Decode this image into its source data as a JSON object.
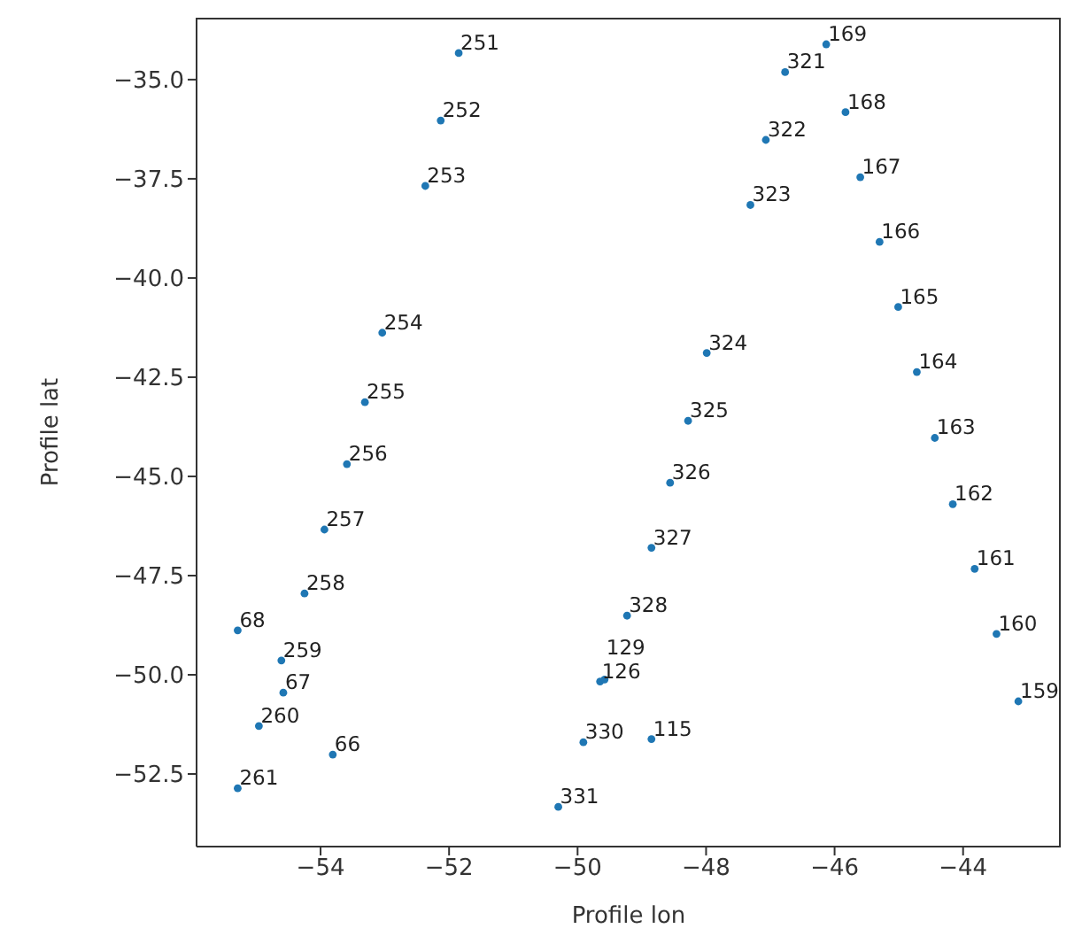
{
  "chart_data": {
    "type": "scatter",
    "xlabel": "Profile lon",
    "ylabel": "Profile lat",
    "grid": false,
    "marker": "circle",
    "xlim": [
      -55.93,
      -42.48
    ],
    "ylim": [
      -54.33,
      -33.44
    ],
    "xticks": [
      {
        "value": -54,
        "label": "−54"
      },
      {
        "value": -52,
        "label": "−52"
      },
      {
        "value": -50,
        "label": "−50"
      },
      {
        "value": -48,
        "label": "−48"
      },
      {
        "value": -46,
        "label": "−46"
      },
      {
        "value": -44,
        "label": "−44"
      }
    ],
    "yticks": [
      {
        "value": -35,
        "label": "−35.0"
      },
      {
        "value": -37.5,
        "label": "−37.5"
      },
      {
        "value": -40,
        "label": "−40.0"
      },
      {
        "value": -42.5,
        "label": "−42.5"
      },
      {
        "value": -45,
        "label": "−45.0"
      },
      {
        "value": -47.5,
        "label": "−47.5"
      },
      {
        "value": -50,
        "label": "−50.0"
      },
      {
        "value": -52.5,
        "label": "−52.5"
      }
    ],
    "series": [
      {
        "color": "#1f77b4",
        "x": [
          -51.85,
          -52.13,
          -52.37,
          -53.04,
          -53.31,
          -53.59,
          -53.94,
          -54.25,
          -55.29,
          -54.61,
          -54.58,
          -54.96,
          -53.81,
          -55.29,
          -46.13,
          -46.77,
          -45.83,
          -47.07,
          -45.6,
          -47.31,
          -45.3,
          -45.01,
          -47.99,
          -44.72,
          -48.28,
          -44.44,
          -48.56,
          -44.16,
          -48.85,
          -43.82,
          -49.23,
          -43.48,
          -49.65,
          -49.58,
          -43.14,
          -49.91,
          -48.85,
          -50.3
        ],
        "values": [
          -34.33,
          -36.03,
          -37.68,
          -41.38,
          -43.13,
          -44.69,
          -46.34,
          -47.95,
          -48.88,
          -49.64,
          -50.45,
          -51.29,
          -52.01,
          -52.86,
          -34.11,
          -34.81,
          -35.82,
          -36.52,
          -37.46,
          -38.16,
          -39.09,
          -40.73,
          -41.89,
          -42.37,
          -43.6,
          -44.03,
          -45.16,
          -45.7,
          -46.8,
          -47.33,
          -48.51,
          -48.97,
          -50.17,
          -50.12,
          -50.67,
          -51.7,
          -51.62,
          -53.33
        ]
      }
    ],
    "annotations": [
      {
        "text": "251",
        "x": -51.85,
        "y": -34.33
      },
      {
        "text": "252",
        "x": -52.13,
        "y": -36.03
      },
      {
        "text": "253",
        "x": -52.37,
        "y": -37.68
      },
      {
        "text": "254",
        "x": -53.04,
        "y": -41.38
      },
      {
        "text": "255",
        "x": -53.31,
        "y": -43.13
      },
      {
        "text": "256",
        "x": -53.59,
        "y": -44.69
      },
      {
        "text": "257",
        "x": -53.94,
        "y": -46.34
      },
      {
        "text": "258",
        "x": -54.25,
        "y": -47.95
      },
      {
        "text": "68",
        "x": -55.29,
        "y": -48.88
      },
      {
        "text": "259",
        "x": -54.61,
        "y": -49.64
      },
      {
        "text": "67",
        "x": -54.58,
        "y": -50.45
      },
      {
        "text": "260",
        "x": -54.96,
        "y": -51.29
      },
      {
        "text": "66",
        "x": -53.81,
        "y": -52.01
      },
      {
        "text": "261",
        "x": -55.29,
        "y": -52.86
      },
      {
        "text": "169",
        "x": -46.13,
        "y": -34.11
      },
      {
        "text": "321",
        "x": -46.77,
        "y": -34.81
      },
      {
        "text": "168",
        "x": -45.83,
        "y": -35.82
      },
      {
        "text": "322",
        "x": -47.07,
        "y": -36.52
      },
      {
        "text": "167",
        "x": -45.6,
        "y": -37.46
      },
      {
        "text": "323",
        "x": -47.31,
        "y": -38.16
      },
      {
        "text": "166",
        "x": -45.3,
        "y": -39.09
      },
      {
        "text": "165",
        "x": -45.01,
        "y": -40.73
      },
      {
        "text": "324",
        "x": -47.99,
        "y": -41.89
      },
      {
        "text": "164",
        "x": -44.72,
        "y": -42.37
      },
      {
        "text": "325",
        "x": -48.28,
        "y": -43.6
      },
      {
        "text": "163",
        "x": -44.44,
        "y": -44.03
      },
      {
        "text": "326",
        "x": -48.56,
        "y": -45.16
      },
      {
        "text": "162",
        "x": -44.16,
        "y": -45.7
      },
      {
        "text": "327",
        "x": -48.85,
        "y": -46.8
      },
      {
        "text": "161",
        "x": -43.82,
        "y": -47.33
      },
      {
        "text": "328",
        "x": -49.23,
        "y": -48.51
      },
      {
        "text": "160",
        "x": -43.48,
        "y": -48.97
      },
      {
        "text": "126",
        "x": -49.65,
        "y": -50.17
      },
      {
        "text": "129",
        "x": -49.58,
        "y": -50.12
      },
      {
        "text": "159",
        "x": -43.14,
        "y": -50.67
      },
      {
        "text": "330",
        "x": -49.91,
        "y": -51.7
      },
      {
        "text": "115",
        "x": -48.85,
        "y": -51.62
      },
      {
        "text": "331",
        "x": -50.3,
        "y": -53.33
      }
    ]
  }
}
